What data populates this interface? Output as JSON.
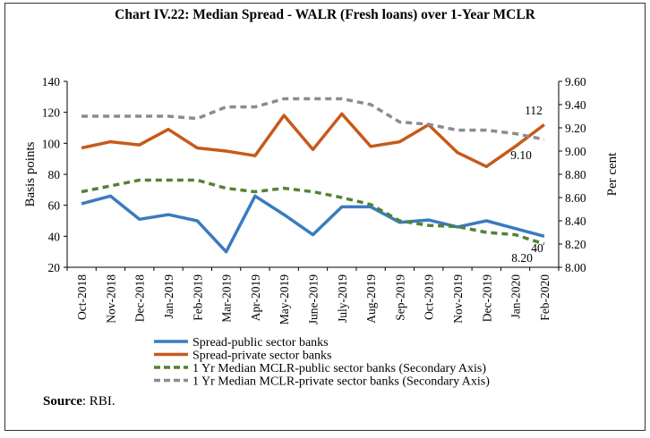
{
  "chart_data": {
    "type": "line",
    "title": "Chart IV.22: Median Spread - WALR (Fresh loans) over 1-Year MCLR",
    "categories": [
      "Oct-2018",
      "Nov-2018",
      "Dec-2018",
      "Jan-2019",
      "Feb-2019",
      "Mar-2019",
      "Apr-2019",
      "May-2019",
      "June-2019",
      "July-2019",
      "Aug-2019",
      "Sep-2019",
      "Oct-2019",
      "Nov-2019",
      "Dec-2019",
      "Jan-2020",
      "Feb-2020"
    ],
    "ylabel": "Basis points",
    "y2label": "Per cent",
    "ylim": [
      20,
      140
    ],
    "yticks": [
      "20",
      "40",
      "60",
      "80",
      "100",
      "120",
      "140"
    ],
    "y2lim": [
      8.0,
      9.6
    ],
    "y2ticks": [
      "8.00",
      "8.20",
      "8.40",
      "8.60",
      "8.80",
      "9.00",
      "9.20",
      "9.40",
      "9.60"
    ],
    "grid": false,
    "legend_position": "bottom",
    "series": [
      {
        "name": "Spread-public sector banks",
        "axis": "primary",
        "style": "solid",
        "color": "#3a7bbf",
        "values": [
          61,
          66,
          51,
          54,
          50,
          30,
          66,
          54,
          41,
          59,
          59,
          49,
          50.5,
          46,
          50,
          45,
          40
        ],
        "end_label": "40"
      },
      {
        "name": "Spread-private sector banks",
        "axis": "primary",
        "style": "solid",
        "color": "#c75a1a",
        "values": [
          97,
          101,
          99,
          109,
          97,
          95,
          92,
          118,
          96,
          119,
          98,
          101,
          112,
          94,
          85,
          98,
          112
        ],
        "end_label": "112"
      },
      {
        "name": "1 Yr Median MCLR-public sector banks (Secondary Axis)",
        "axis": "secondary",
        "style": "dashed",
        "color": "#548235",
        "values": [
          8.65,
          8.7,
          8.75,
          8.75,
          8.75,
          8.68,
          8.65,
          8.68,
          8.65,
          8.6,
          8.54,
          8.4,
          8.36,
          8.35,
          8.3,
          8.28,
          8.2
        ],
        "end_label": "8.20"
      },
      {
        "name": "1 Yr Median MCLR-private sector banks (Secondary Axis)",
        "axis": "secondary",
        "style": "dashed",
        "color": "#8c8c8c",
        "values": [
          9.3,
          9.3,
          9.3,
          9.3,
          9.28,
          9.38,
          9.38,
          9.45,
          9.45,
          9.45,
          9.4,
          9.25,
          9.23,
          9.18,
          9.18,
          9.15,
          9.1
        ],
        "end_label": "9.10"
      }
    ]
  },
  "source": {
    "label": "Source",
    "text": ": RBI."
  }
}
